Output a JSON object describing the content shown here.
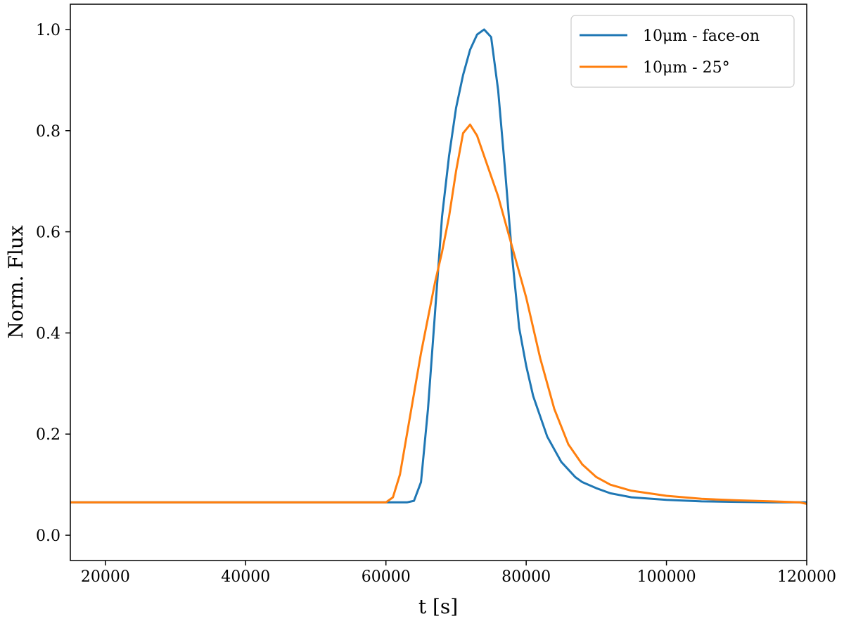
{
  "chart_data": {
    "type": "line",
    "title": "",
    "xlabel": "t [s]",
    "ylabel": "Norm. Flux",
    "xlim": [
      15000,
      120000
    ],
    "ylim": [
      -0.05,
      1.05
    ],
    "xticks": [
      20000,
      40000,
      60000,
      80000,
      100000,
      120000
    ],
    "yticks": [
      0.0,
      0.2,
      0.4,
      0.6,
      0.8,
      1.0
    ],
    "xtick_labels": [
      "20000",
      "40000",
      "60000",
      "80000",
      "100000",
      "120000"
    ],
    "ytick_labels": [
      "0.0",
      "0.2",
      "0.4",
      "0.6",
      "0.8",
      "1.0"
    ],
    "grid": false,
    "legend_position": "top-right",
    "series": [
      {
        "name": "10μm - face-on",
        "color": "#1f77b4",
        "x": [
          15000,
          20000,
          30000,
          40000,
          50000,
          60000,
          63000,
          64000,
          65000,
          66000,
          67000,
          68000,
          69000,
          70000,
          71000,
          72000,
          73000,
          74000,
          75000,
          76000,
          77000,
          78000,
          79000,
          80000,
          81000,
          82000,
          83000,
          84000,
          85000,
          86000,
          87000,
          88000,
          90000,
          92000,
          95000,
          100000,
          105000,
          110000,
          115000,
          120000
        ],
        "y": [
          0.065,
          0.065,
          0.065,
          0.065,
          0.065,
          0.065,
          0.065,
          0.068,
          0.105,
          0.25,
          0.44,
          0.63,
          0.75,
          0.845,
          0.91,
          0.96,
          0.99,
          1.0,
          0.985,
          0.88,
          0.72,
          0.55,
          0.41,
          0.335,
          0.275,
          0.235,
          0.195,
          0.17,
          0.145,
          0.13,
          0.115,
          0.105,
          0.093,
          0.083,
          0.075,
          0.07,
          0.067,
          0.066,
          0.065,
          0.065
        ]
      },
      {
        "name": "10μm - 25°",
        "color": "#ff7f0e",
        "x": [
          15000,
          20000,
          30000,
          40000,
          50000,
          60000,
          61000,
          62000,
          63000,
          64000,
          65000,
          66000,
          67000,
          68000,
          69000,
          70000,
          71000,
          72000,
          73000,
          74000,
          75000,
          76000,
          77000,
          78000,
          79000,
          80000,
          81000,
          82000,
          83000,
          84000,
          86000,
          88000,
          90000,
          92000,
          95000,
          100000,
          105000,
          110000,
          115000,
          119000,
          120000
        ],
        "y": [
          0.065,
          0.065,
          0.065,
          0.065,
          0.065,
          0.065,
          0.075,
          0.12,
          0.2,
          0.28,
          0.36,
          0.43,
          0.5,
          0.56,
          0.63,
          0.72,
          0.795,
          0.812,
          0.79,
          0.75,
          0.71,
          0.67,
          0.62,
          0.57,
          0.52,
          0.47,
          0.41,
          0.35,
          0.3,
          0.25,
          0.18,
          0.14,
          0.115,
          0.1,
          0.088,
          0.078,
          0.072,
          0.069,
          0.067,
          0.065,
          0.062
        ]
      }
    ]
  }
}
